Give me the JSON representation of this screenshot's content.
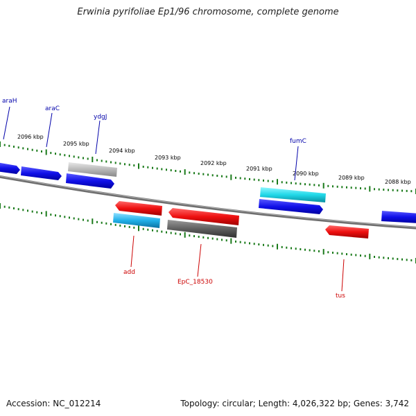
{
  "title": "Erwinia pyrifoliae Ep1/96 chromosome, complete genome",
  "footer": {
    "accession": "Accession: NC_012214",
    "topology": "Topology: circular; Length: 4,026,322 bp; Genes: 3,742"
  },
  "ruler_labels": [
    "2096 kbp",
    "2095 kbp",
    "2094 kbp",
    "2093 kbp",
    "2092 kbp",
    "2091 kbp",
    "2090 kbp",
    "2089 kbp",
    "2088 kbp"
  ],
  "genes": [
    {
      "name": "araH",
      "strand": "+",
      "color": "#1010e8"
    },
    {
      "name": "araC",
      "strand": "+",
      "color": "#1010e8"
    },
    {
      "name": "ydgJ",
      "strand": "+",
      "color": "#1010e8"
    },
    {
      "name": "",
      "strand": "+",
      "color": "#b8b8b8"
    },
    {
      "name": "fumC",
      "strand": "+",
      "color": "#1010e8"
    },
    {
      "name": "",
      "strand": "+",
      "color": "#20d8e8"
    },
    {
      "name": "",
      "strand": "+",
      "color": "#1010e8"
    },
    {
      "name": "add",
      "strand": "-",
      "color": "#ee1010"
    },
    {
      "name": "",
      "strand": "-",
      "color": "#20b0e8"
    },
    {
      "name": "EpC_18530",
      "strand": "-",
      "color": "#ee1010"
    },
    {
      "name": "",
      "strand": "-",
      "color": "#606060"
    },
    {
      "name": "tus",
      "strand": "-",
      "color": "#ee1010"
    }
  ],
  "colors": {
    "backbone": "#808080",
    "ticks": "#1a7a1a",
    "plus_label": "#0000aa",
    "minus_label": "#cc0000"
  }
}
